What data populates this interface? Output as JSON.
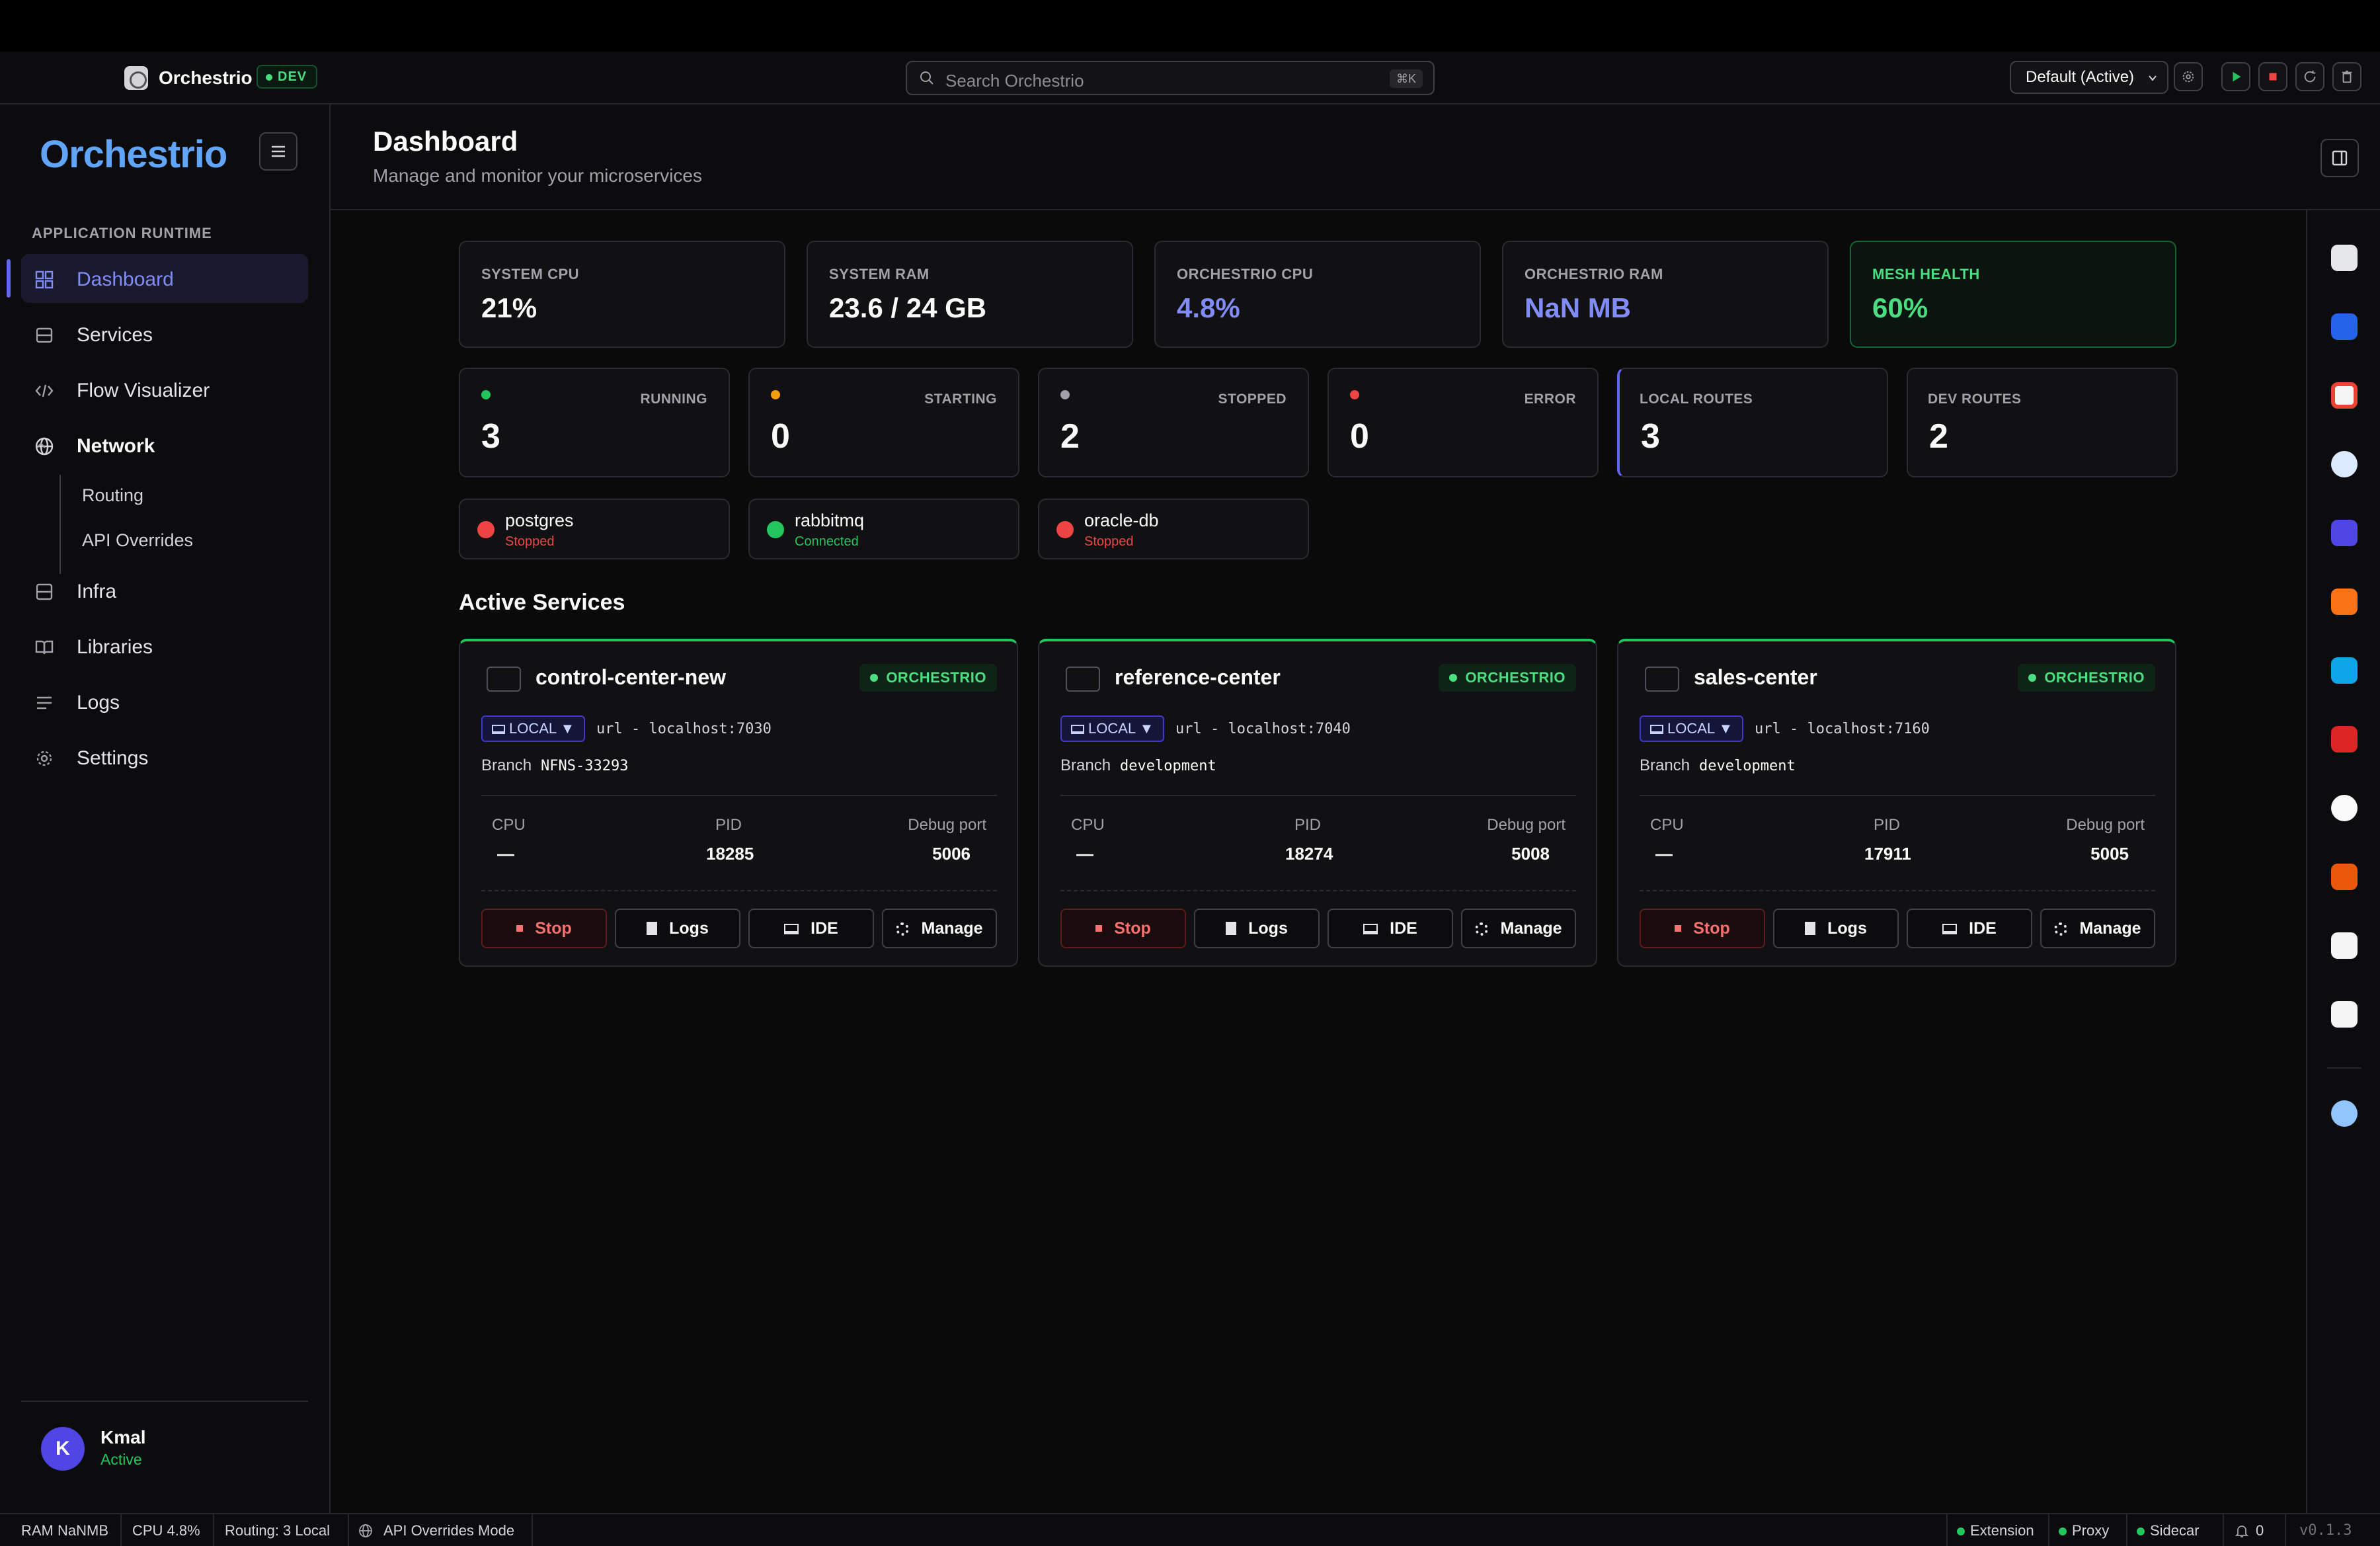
{
  "topbar": {
    "app_name": "Orchestrio",
    "env_badge": "DEV",
    "search_placeholder": "Search Orchestrio",
    "search_shortcut": "⌘K",
    "profile": "Default (Active)"
  },
  "sidebar": {
    "brand": "Orchestrio",
    "section_label": "APPLICATION RUNTIME",
    "items": [
      {
        "label": "Dashboard",
        "icon": "grid-icon"
      },
      {
        "label": "Services",
        "icon": "database-icon"
      },
      {
        "label": "Flow Visualizer",
        "icon": "code-icon"
      },
      {
        "label": "Network",
        "icon": "globe-icon"
      },
      {
        "label": "Infra",
        "icon": "server-icon"
      },
      {
        "label": "Libraries",
        "icon": "book-icon"
      },
      {
        "label": "Logs",
        "icon": "list-icon"
      },
      {
        "label": "Settings",
        "icon": "gear-icon"
      }
    ],
    "network_children": [
      "Routing",
      "API Overrides"
    ],
    "user": {
      "initial": "K",
      "name": "Kmal",
      "status": "Active"
    }
  },
  "header": {
    "title": "Dashboard",
    "subtitle": "Manage and monitor your microservices"
  },
  "stats": [
    {
      "label": "SYSTEM CPU",
      "value": "21%"
    },
    {
      "label": "SYSTEM RAM",
      "value": "23.6 / 24 GB"
    },
    {
      "label": "ORCHESTRIO CPU",
      "value": "4.8%"
    },
    {
      "label": "ORCHESTRIO RAM",
      "value": "NaN MB"
    },
    {
      "label": "MESH HEALTH",
      "value": "60%"
    }
  ],
  "counts": [
    {
      "label": "RUNNING",
      "value": "3",
      "color": "#22c55e"
    },
    {
      "label": "STARTING",
      "value": "0",
      "color": "#f59e0b"
    },
    {
      "label": "STOPPED",
      "value": "2",
      "color": "#a1a1aa"
    },
    {
      "label": "ERROR",
      "value": "0",
      "color": "#ef4444"
    },
    {
      "label": "LOCAL ROUTES",
      "value": "3"
    },
    {
      "label": "DEV ROUTES",
      "value": "2"
    }
  ],
  "infra": [
    {
      "name": "postgres",
      "status": "Stopped",
      "color": "#ef4444"
    },
    {
      "name": "rabbitmq",
      "status": "Connected",
      "color": "#22c55e"
    },
    {
      "name": "oracle-db",
      "status": "Stopped",
      "color": "#ef4444"
    }
  ],
  "active_services_title": "Active Services",
  "services": [
    {
      "name": "control-center-new",
      "tag": "ORCHESTRIO",
      "mode": "LOCAL ▼",
      "url": "url - localhost:7030",
      "branch_label": "Branch",
      "branch": "NFNS-33293",
      "cpu_label": "CPU",
      "cpu": "—",
      "pid_label": "PID",
      "pid": "18285",
      "debug_label": "Debug port",
      "debug": "5006"
    },
    {
      "name": "reference-center",
      "tag": "ORCHESTRIO",
      "mode": "LOCAL ▼",
      "url": "url - localhost:7040",
      "branch_label": "Branch",
      "branch": "development",
      "cpu_label": "CPU",
      "cpu": "—",
      "pid_label": "PID",
      "pid": "18274",
      "debug_label": "Debug port",
      "debug": "5008"
    },
    {
      "name": "sales-center",
      "tag": "ORCHESTRIO",
      "mode": "LOCAL ▼",
      "url": "url - localhost:7160",
      "branch_label": "Branch",
      "branch": "development",
      "cpu_label": "CPU",
      "cpu": "—",
      "pid_label": "PID",
      "pid": "17911",
      "debug_label": "Debug port",
      "debug": "5005"
    }
  ],
  "service_actions": {
    "stop": "Stop",
    "logs": "Logs",
    "ide": "IDE",
    "manage": "Manage"
  },
  "dock_icons": [
    "contacts-app-icon",
    "vscode-icon",
    "chrome-icon",
    "browser-icon",
    "teams-icon",
    "editor-icon",
    "docker-icon",
    "dictionary-icon",
    "clock-icon",
    "claude-icon",
    "drive-icon",
    "calendar-icon",
    "globe-icon"
  ],
  "statusbar": {
    "ram": "RAM NaNMB",
    "cpu": "CPU 4.8%",
    "routing": "Routing: 3 Local",
    "mode": "API Overrides Mode",
    "extension": "Extension",
    "proxy": "Proxy",
    "sidecar": "Sidecar",
    "notifications": "0",
    "version": "v0.1.3"
  }
}
